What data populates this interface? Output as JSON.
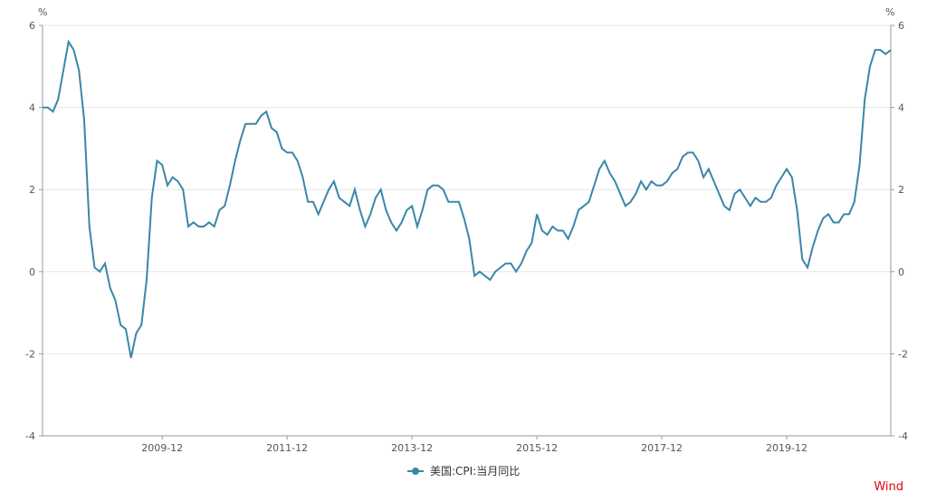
{
  "chart_data": {
    "type": "line",
    "left_unit": "%",
    "right_unit": "%",
    "ylim": [
      -4,
      6
    ],
    "y_ticks": [
      -4,
      -2,
      0,
      2,
      4,
      6
    ],
    "x_ticks": [
      "2009-12",
      "2011-12",
      "2013-12",
      "2015-12",
      "2017-12",
      "2019-12"
    ],
    "grid": true,
    "legend_position": "bottom",
    "series": [
      {
        "name": "美国:CPI:当月同比",
        "color": "#3a87a8",
        "x": [
          "2008-01",
          "2008-02",
          "2008-03",
          "2008-04",
          "2008-05",
          "2008-06",
          "2008-07",
          "2008-08",
          "2008-09",
          "2008-10",
          "2008-11",
          "2008-12",
          "2009-01",
          "2009-02",
          "2009-03",
          "2009-04",
          "2009-05",
          "2009-06",
          "2009-07",
          "2009-08",
          "2009-09",
          "2009-10",
          "2009-11",
          "2009-12",
          "2010-01",
          "2010-02",
          "2010-03",
          "2010-04",
          "2010-05",
          "2010-06",
          "2010-07",
          "2010-08",
          "2010-09",
          "2010-10",
          "2010-11",
          "2010-12",
          "2011-01",
          "2011-02",
          "2011-03",
          "2011-04",
          "2011-05",
          "2011-06",
          "2011-07",
          "2011-08",
          "2011-09",
          "2011-10",
          "2011-11",
          "2011-12",
          "2012-01",
          "2012-02",
          "2012-03",
          "2012-04",
          "2012-05",
          "2012-06",
          "2012-07",
          "2012-08",
          "2012-09",
          "2012-10",
          "2012-11",
          "2012-12",
          "2013-01",
          "2013-02",
          "2013-03",
          "2013-04",
          "2013-05",
          "2013-06",
          "2013-07",
          "2013-08",
          "2013-09",
          "2013-10",
          "2013-11",
          "2013-12",
          "2014-01",
          "2014-02",
          "2014-03",
          "2014-04",
          "2014-05",
          "2014-06",
          "2014-07",
          "2014-08",
          "2014-09",
          "2014-10",
          "2014-11",
          "2014-12",
          "2015-01",
          "2015-02",
          "2015-03",
          "2015-04",
          "2015-05",
          "2015-06",
          "2015-07",
          "2015-08",
          "2015-09",
          "2015-10",
          "2015-11",
          "2015-12",
          "2016-01",
          "2016-02",
          "2016-03",
          "2016-04",
          "2016-05",
          "2016-06",
          "2016-07",
          "2016-08",
          "2016-09",
          "2016-10",
          "2016-11",
          "2016-12",
          "2017-01",
          "2017-02",
          "2017-03",
          "2017-04",
          "2017-05",
          "2017-06",
          "2017-07",
          "2017-08",
          "2017-09",
          "2017-10",
          "2017-11",
          "2017-12",
          "2018-01",
          "2018-02",
          "2018-03",
          "2018-04",
          "2018-05",
          "2018-06",
          "2018-07",
          "2018-08",
          "2018-09",
          "2018-10",
          "2018-11",
          "2018-12",
          "2019-01",
          "2019-02",
          "2019-03",
          "2019-04",
          "2019-05",
          "2019-06",
          "2019-07",
          "2019-08",
          "2019-09",
          "2019-10",
          "2019-11",
          "2019-12",
          "2020-01",
          "2020-02",
          "2020-03",
          "2020-04",
          "2020-05",
          "2020-06",
          "2020-07",
          "2020-08",
          "2020-09",
          "2020-10",
          "2020-11",
          "2020-12",
          "2021-01",
          "2021-02",
          "2021-03",
          "2021-04",
          "2021-05",
          "2021-06",
          "2021-07",
          "2021-08"
        ],
        "values": [
          4.0,
          4.0,
          3.9,
          4.2,
          4.9,
          5.6,
          5.4,
          4.9,
          3.7,
          1.1,
          0.1,
          0.0,
          0.2,
          -0.4,
          -0.7,
          -1.3,
          -1.4,
          -2.1,
          -1.5,
          -1.3,
          -0.2,
          1.8,
          2.7,
          2.6,
          2.1,
          2.3,
          2.2,
          2.0,
          1.1,
          1.2,
          1.1,
          1.1,
          1.2,
          1.1,
          1.5,
          1.6,
          2.1,
          2.7,
          3.2,
          3.6,
          3.6,
          3.6,
          3.8,
          3.9,
          3.5,
          3.4,
          3.0,
          2.9,
          2.9,
          2.7,
          2.3,
          1.7,
          1.7,
          1.4,
          1.7,
          2.0,
          2.2,
          1.8,
          1.7,
          1.6,
          2.0,
          1.5,
          1.1,
          1.4,
          1.8,
          2.0,
          1.5,
          1.2,
          1.0,
          1.2,
          1.5,
          1.6,
          1.1,
          1.5,
          2.0,
          2.1,
          2.1,
          2.0,
          1.7,
          1.7,
          1.7,
          1.3,
          0.8,
          -0.1,
          0.0,
          -0.1,
          -0.2,
          0.0,
          0.1,
          0.2,
          0.2,
          0.0,
          0.2,
          0.5,
          0.7,
          1.4,
          1.0,
          0.9,
          1.1,
          1.0,
          1.0,
          0.8,
          1.1,
          1.5,
          1.6,
          1.7,
          2.1,
          2.5,
          2.7,
          2.4,
          2.2,
          1.9,
          1.6,
          1.7,
          1.9,
          2.2,
          2.0,
          2.2,
          2.1,
          2.1,
          2.2,
          2.4,
          2.5,
          2.8,
          2.9,
          2.9,
          2.7,
          2.3,
          2.5,
          2.2,
          1.9,
          1.6,
          1.5,
          1.9,
          2.0,
          1.8,
          1.6,
          1.8,
          1.7,
          1.7,
          1.8,
          2.1,
          2.3,
          2.5,
          2.3,
          1.5,
          0.3,
          0.1,
          0.6,
          1.0,
          1.3,
          1.4,
          1.2,
          1.2,
          1.4,
          1.4,
          1.7,
          2.6,
          4.2,
          5.0,
          5.4,
          5.4,
          5.3,
          5.4
        ]
      }
    ]
  },
  "watermark": "Wind"
}
